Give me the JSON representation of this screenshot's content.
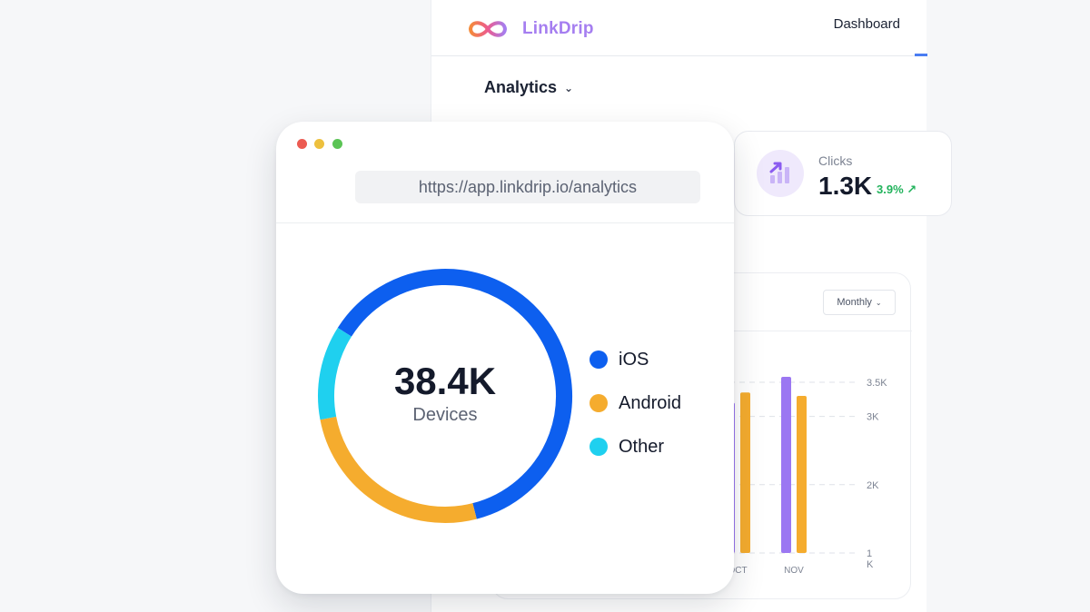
{
  "dashboard": {
    "brand_name": "LinkDrip",
    "nav_active": "Dashboard",
    "section_menu": "Analytics",
    "clicks_card": {
      "label": "Clicks",
      "value": "1.3K",
      "delta": "3.9%",
      "icon": "trend-chart-icon"
    },
    "period_select": "Monthly",
    "colors": {
      "brand": "#a57ef0",
      "accent": "#4a7df2",
      "positive": "#22b35c"
    }
  },
  "window": {
    "url": "https://app.linkdrip.io/analytics",
    "total_value": "38.4K",
    "total_label": "Devices"
  },
  "chart_data": [
    {
      "type": "pie",
      "title": "",
      "center_value": "38.4K",
      "center_label": "Devices",
      "series": [
        {
          "name": "iOS",
          "value": 62,
          "color": "#0d5fef"
        },
        {
          "name": "Android",
          "value": 26,
          "color": "#f5ac2e"
        },
        {
          "name": "Other",
          "value": 12,
          "color": "#1fd0ef"
        }
      ]
    },
    {
      "type": "bar",
      "title": "",
      "categories": [
        "OCT",
        "NOV"
      ],
      "series": [
        {
          "values": [
            3200,
            3580
          ],
          "color": "#9b77f2"
        },
        {
          "values": [
            3350,
            3300
          ],
          "color": "#f5ac2e"
        }
      ],
      "y_ticks": [
        "3.5K",
        "3K",
        "2K",
        "1\nK"
      ],
      "ylim": [
        1000,
        3500
      ],
      "grid": true
    }
  ]
}
